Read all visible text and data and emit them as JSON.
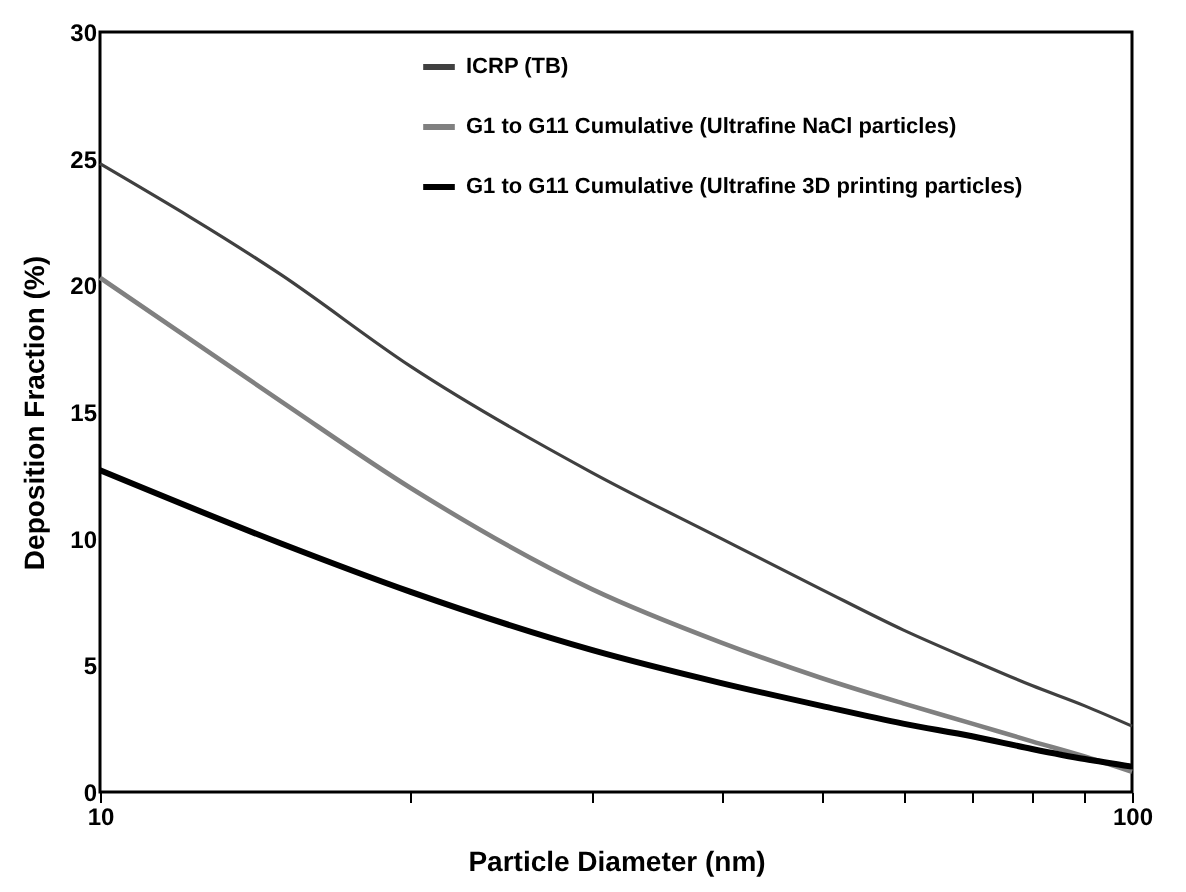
{
  "chart_data": {
    "type": "line",
    "xlabel": "Particle Diameter (nm)",
    "ylabel": "Deposition Fraction (%)",
    "x": [
      10,
      15,
      20,
      30,
      40,
      50,
      60,
      70,
      80,
      90,
      100
    ],
    "series": [
      {
        "name": "ICRP (TB)",
        "color": "#404040",
        "values": [
          24.8,
          20.4,
          16.8,
          12.6,
          10.0,
          8.0,
          6.4,
          5.2,
          4.2,
          3.4,
          2.6
        ]
      },
      {
        "name": "G1 to G11 Cumulative (Ultrafine NaCl particles)",
        "color": "#808080",
        "values": [
          20.3,
          15.4,
          12.0,
          8.0,
          5.9,
          4.5,
          3.5,
          2.7,
          2.0,
          1.4,
          0.8
        ]
      },
      {
        "name": "G1 to G11 Cumulative (Ultrafine 3D printing particles)",
        "color": "#000000",
        "values": [
          12.7,
          9.8,
          7.9,
          5.6,
          4.3,
          3.4,
          2.7,
          2.2,
          1.7,
          1.3,
          1.0
        ]
      }
    ],
    "log": "x",
    "xlim": [
      10,
      100
    ],
    "xticks": [
      10,
      {
        "value": 20,
        "label": null
      },
      {
        "value": 30,
        "label": null
      },
      {
        "value": 40,
        "label": null
      },
      {
        "value": 50,
        "label": null
      },
      {
        "value": 60,
        "label": null
      },
      {
        "value": 70,
        "label": null
      },
      {
        "value": 80,
        "label": null
      },
      {
        "value": 90,
        "label": null
      },
      100
    ],
    "ylim": [
      0,
      30
    ],
    "yticks": [
      0,
      5,
      10,
      15,
      20,
      25,
      30
    ],
    "grid": false,
    "legend": "top right",
    "marker": "none",
    "line_style": "solid"
  }
}
